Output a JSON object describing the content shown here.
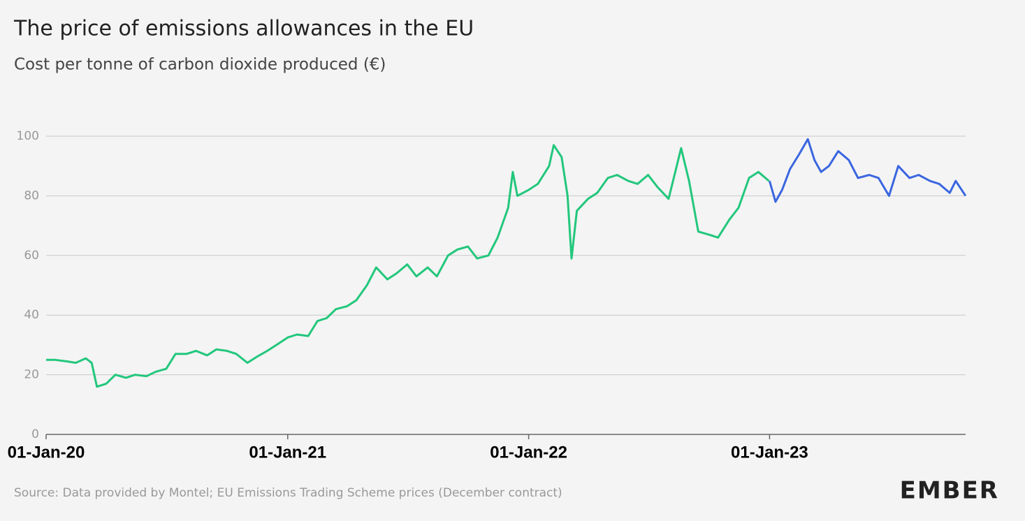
{
  "chart_data": {
    "type": "line",
    "title": "The price of emissions allowances in the EU",
    "subtitle": "Cost per tonne of carbon dioxide produced (€)",
    "source": "Source: Data provided by Montel; EU Emissions Trading Scheme prices (December contract)",
    "logo": "EMBER",
    "xlim": [
      "2020-01-01",
      "2023-10-25"
    ],
    "xticks": [
      {
        "value": "2020-01-01",
        "label": "01-Jan-20"
      },
      {
        "value": "2021-01-01",
        "label": "01-Jan-21"
      },
      {
        "value": "2022-01-01",
        "label": "01-Jan-22"
      },
      {
        "value": "2023-01-01",
        "label": "01-Jan-23"
      }
    ],
    "ylim": [
      0,
      100
    ],
    "yticks": [
      0,
      20,
      40,
      60,
      80,
      100
    ],
    "grid": true,
    "series": [
      {
        "color": "#22c77c",
        "x": [
          "2020-01-01",
          "2020-01-15",
          "2020-02-01",
          "2020-02-15",
          "2020-03-01",
          "2020-03-10",
          "2020-03-18",
          "2020-04-01",
          "2020-04-15",
          "2020-05-01",
          "2020-05-15",
          "2020-06-01",
          "2020-06-15",
          "2020-07-01",
          "2020-07-15",
          "2020-08-01",
          "2020-08-15",
          "2020-09-01",
          "2020-09-15",
          "2020-10-01",
          "2020-10-15",
          "2020-11-01",
          "2020-11-15",
          "2020-12-01",
          "2020-12-15",
          "2021-01-01",
          "2021-01-15",
          "2021-02-01",
          "2021-02-15",
          "2021-03-01",
          "2021-03-15",
          "2021-04-01",
          "2021-04-15",
          "2021-05-01",
          "2021-05-15",
          "2021-06-01",
          "2021-06-15",
          "2021-07-01",
          "2021-07-15",
          "2021-08-01",
          "2021-08-15",
          "2021-09-01",
          "2021-09-15",
          "2021-10-01",
          "2021-10-15",
          "2021-11-01",
          "2021-11-15",
          "2021-12-01",
          "2021-12-08",
          "2021-12-15",
          "2022-01-01",
          "2022-01-15",
          "2022-02-01",
          "2022-02-08",
          "2022-02-20",
          "2022-03-01",
          "2022-03-07",
          "2022-03-15",
          "2022-04-01",
          "2022-04-15",
          "2022-05-01",
          "2022-05-15",
          "2022-06-01",
          "2022-06-15",
          "2022-07-01",
          "2022-07-15",
          "2022-08-01",
          "2022-08-10",
          "2022-08-20",
          "2022-09-01",
          "2022-09-15",
          "2022-10-01",
          "2022-10-15",
          "2022-11-01",
          "2022-11-15",
          "2022-12-01",
          "2022-12-15",
          "2022-12-31"
        ],
        "values": [
          25,
          25,
          24.5,
          24,
          25.5,
          24,
          16,
          17,
          20,
          19,
          20,
          19.5,
          21,
          22,
          27,
          27,
          28,
          26.5,
          28.5,
          28,
          27,
          24,
          26,
          28,
          30,
          32.5,
          33.5,
          33,
          38,
          39,
          42,
          43,
          45,
          50,
          56,
          52,
          54,
          57,
          53,
          56,
          53,
          60,
          62,
          63,
          59,
          60,
          66,
          76,
          88,
          80,
          82,
          84,
          90,
          97,
          93,
          80,
          59,
          75,
          79,
          81,
          86,
          87,
          85,
          84,
          87,
          83,
          79,
          87,
          96,
          85,
          68,
          67,
          66,
          72,
          76,
          86,
          88,
          85
        ]
      },
      {
        "color": "#3a66e0",
        "x": [
          "2023-01-01",
          "2023-01-10",
          "2023-01-20",
          "2023-02-01",
          "2023-02-15",
          "2023-02-28",
          "2023-03-10",
          "2023-03-20",
          "2023-04-01",
          "2023-04-15",
          "2023-05-01",
          "2023-05-15",
          "2023-06-01",
          "2023-06-15",
          "2023-07-01",
          "2023-07-15",
          "2023-08-01",
          "2023-08-15",
          "2023-09-01",
          "2023-09-15",
          "2023-10-01",
          "2023-10-10",
          "2023-10-25"
        ],
        "values": [
          85,
          78,
          82,
          89,
          94,
          99,
          92,
          88,
          90,
          95,
          92,
          86,
          87,
          86,
          80,
          90,
          86,
          87,
          85,
          84,
          81,
          85,
          80
        ]
      }
    ]
  }
}
